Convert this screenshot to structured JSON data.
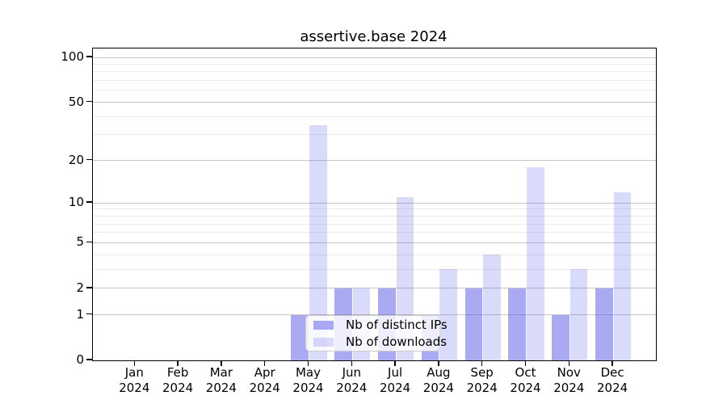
{
  "title": "assertive.base 2024",
  "chart_data": {
    "type": "bar",
    "title": "assertive.base 2024",
    "categories": [
      "Jan 2024",
      "Feb 2024",
      "Mar 2024",
      "Apr 2024",
      "May 2024",
      "Jun 2024",
      "Jul 2024",
      "Aug 2024",
      "Sep 2024",
      "Oct 2024",
      "Nov 2024",
      "Dec 2024"
    ],
    "series": [
      {
        "name": "Nb of distinct IPs",
        "values": [
          0,
          0,
          0,
          0,
          1,
          2,
          2,
          1,
          2,
          2,
          1,
          2
        ]
      },
      {
        "name": "Nb of downloads",
        "values": [
          0,
          0,
          0,
          0,
          35,
          2,
          11,
          3,
          4,
          18,
          3,
          12
        ]
      }
    ],
    "yscale": "log1p",
    "yticks": [
      0,
      1,
      2,
      5,
      10,
      20,
      50,
      100
    ],
    "minor_yticks": [
      3,
      4,
      6,
      7,
      8,
      9,
      30,
      40,
      60,
      70,
      80,
      90
    ],
    "ylim": [
      0,
      115
    ],
    "grid": "on",
    "legend_position": "lower center inside plot",
    "colors": {
      "ips_bar": "rgba(85,85,232,0.50)",
      "downloads_bar": "rgba(85,85,232,0.22)",
      "major_grid": "#c6c6c6",
      "minor_grid": "#ebebeb",
      "spine": "#000000"
    }
  }
}
